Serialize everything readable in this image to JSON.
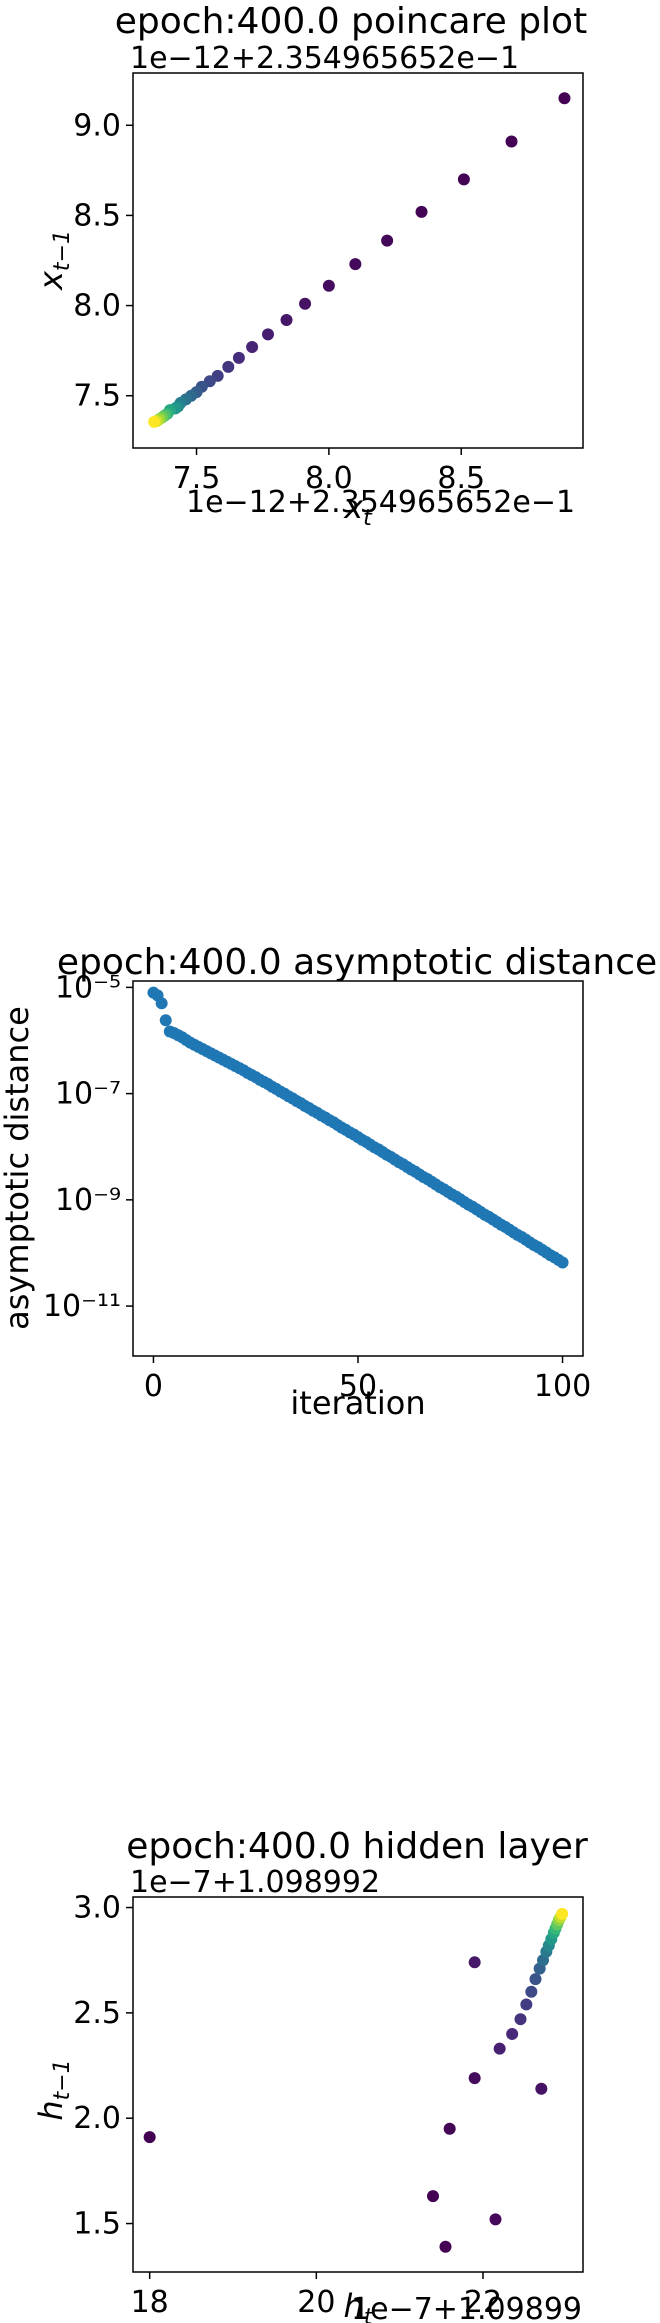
{
  "chart_data": [
    {
      "type": "scatter",
      "title": "epoch:400.0 poincare plot",
      "offset_x_label": "1e−12+2.354965652e−1",
      "offset_y_label": "1e−12+2.354965652e−1",
      "xlabel": "x_t",
      "ylabel": "x_{t−1}",
      "xlim": [
        7.26,
        8.96
      ],
      "ylim": [
        7.21,
        9.29
      ],
      "xticks": [
        7.5,
        8.0,
        8.5
      ],
      "xtick_labels": [
        "7.5",
        "8.0",
        "8.5"
      ],
      "yticks": [
        7.5,
        8.0,
        8.5,
        9.0
      ],
      "ytick_labels": [
        "7.5",
        "8.0",
        "8.5",
        "9.0"
      ],
      "colormap": "viridis",
      "color_by": "iteration order (dark = early, yellow = late)",
      "points": [
        {
          "x": 8.89,
          "y": 9.15
        },
        {
          "x": 8.69,
          "y": 8.91
        },
        {
          "x": 8.51,
          "y": 8.7
        },
        {
          "x": 8.35,
          "y": 8.52
        },
        {
          "x": 8.22,
          "y": 8.36
        },
        {
          "x": 8.1,
          "y": 8.23
        },
        {
          "x": 8.0,
          "y": 8.11
        },
        {
          "x": 7.91,
          "y": 8.01
        },
        {
          "x": 7.84,
          "y": 7.92
        },
        {
          "x": 7.77,
          "y": 7.84
        },
        {
          "x": 7.71,
          "y": 7.77
        },
        {
          "x": 7.66,
          "y": 7.71
        },
        {
          "x": 7.62,
          "y": 7.66
        },
        {
          "x": 7.58,
          "y": 7.61
        },
        {
          "x": 7.55,
          "y": 7.58
        },
        {
          "x": 7.52,
          "y": 7.55
        },
        {
          "x": 7.5,
          "y": 7.52
        },
        {
          "x": 7.48,
          "y": 7.5
        },
        {
          "x": 7.46,
          "y": 7.48
        },
        {
          "x": 7.44,
          "y": 7.46
        },
        {
          "x": 7.43,
          "y": 7.44
        },
        {
          "x": 7.42,
          "y": 7.43
        },
        {
          "x": 7.4,
          "y": 7.42
        },
        {
          "x": 7.39,
          "y": 7.4
        },
        {
          "x": 7.38,
          "y": 7.39
        },
        {
          "x": 7.37,
          "y": 7.38
        },
        {
          "x": 7.36,
          "y": 7.37
        },
        {
          "x": 7.35,
          "y": 7.36
        },
        {
          "x": 7.34,
          "y": 7.355
        }
      ]
    },
    {
      "type": "scatter",
      "title": "epoch:400.0 asymptotic distance",
      "xlabel": "iteration",
      "ylabel": "asymptotic distance",
      "yscale": "log",
      "xlim": [
        -5,
        105
      ],
      "ylim_log10": [
        -11.94,
        -4.88
      ],
      "xticks": [
        0,
        50,
        100
      ],
      "xtick_labels": [
        "0",
        "50",
        "100"
      ],
      "yticks_log10": [
        -5,
        -7,
        -9,
        -11
      ],
      "ytick_labels": [
        "10⁻⁵",
        "10⁻⁷",
        "10⁻⁹",
        "10⁻¹¹"
      ],
      "color": "#1f77b4",
      "x": [
        0,
        1,
        2,
        3,
        4,
        5,
        6,
        7,
        8,
        9,
        10,
        11,
        12,
        13,
        14,
        15,
        16,
        17,
        18,
        19,
        20,
        21,
        22,
        23,
        24,
        25,
        26,
        27,
        28,
        29,
        30,
        31,
        32,
        33,
        34,
        35,
        36,
        37,
        38,
        39,
        40,
        41,
        42,
        43,
        44,
        45,
        46,
        47,
        48,
        49,
        50,
        51,
        52,
        53,
        54,
        55,
        56,
        57,
        58,
        59,
        60,
        61,
        62,
        63,
        64,
        65,
        66,
        67,
        68,
        69,
        70,
        71,
        72,
        73,
        74,
        75,
        76,
        77,
        78,
        79,
        80,
        81,
        82,
        83,
        84,
        85,
        86,
        87,
        88,
        89,
        90,
        91,
        92,
        93,
        94,
        95,
        96,
        97,
        98,
        99,
        100
      ],
      "log10_y": [
        -5.1,
        -5.15,
        -5.3,
        -5.62,
        -5.83,
        -5.86,
        -5.9,
        -5.94,
        -5.99,
        -6.04,
        -6.08,
        -6.12,
        -6.16,
        -6.2,
        -6.24,
        -6.28,
        -6.32,
        -6.36,
        -6.4,
        -6.44,
        -6.48,
        -6.52,
        -6.56,
        -6.61,
        -6.65,
        -6.69,
        -6.74,
        -6.78,
        -6.82,
        -6.87,
        -6.91,
        -6.96,
        -7.0,
        -7.05,
        -7.09,
        -7.14,
        -7.18,
        -7.23,
        -7.27,
        -7.32,
        -7.36,
        -7.41,
        -7.45,
        -7.5,
        -7.54,
        -7.59,
        -7.64,
        -7.68,
        -7.73,
        -7.77,
        -7.82,
        -7.87,
        -7.91,
        -7.96,
        -8.01,
        -8.05,
        -8.1,
        -8.15,
        -8.19,
        -8.24,
        -8.29,
        -8.33,
        -8.38,
        -8.43,
        -8.47,
        -8.52,
        -8.57,
        -8.61,
        -8.66,
        -8.71,
        -8.76,
        -8.8,
        -8.85,
        -8.9,
        -8.94,
        -8.99,
        -9.04,
        -9.09,
        -9.13,
        -9.18,
        -9.23,
        -9.28,
        -9.32,
        -9.37,
        -9.42,
        -9.47,
        -9.51,
        -9.56,
        -9.61,
        -9.66,
        -9.7,
        -9.75,
        -9.8,
        -9.85,
        -9.89,
        -9.94,
        -9.99,
        -10.04,
        -10.08,
        -10.13,
        -10.18
      ]
    },
    {
      "type": "scatter",
      "title": "epoch:400.0 hidden layer",
      "offset_x_label": "1e−7+1.09899",
      "offset_y_label": "1e−7+1.098992",
      "xlabel": "h_t",
      "ylabel": "h_{t−1}",
      "xlim": [
        17.8,
        23.2
      ],
      "ylim": [
        1.27,
        3.05
      ],
      "xticks": [
        18,
        20,
        22
      ],
      "xtick_labels": [
        "18",
        "20",
        "22"
      ],
      "yticks": [
        1.5,
        2.0,
        2.5,
        3.0
      ],
      "ytick_labels": [
        "1.5",
        "2.0",
        "2.5",
        "3.0"
      ],
      "colormap": "viridis",
      "color_by": "iteration order (dark = early, yellow = late)",
      "points": [
        {
          "x": 18.0,
          "y": 1.91
        },
        {
          "x": 21.55,
          "y": 1.39
        },
        {
          "x": 21.4,
          "y": 1.63
        },
        {
          "x": 21.6,
          "y": 1.95
        },
        {
          "x": 22.15,
          "y": 1.52
        },
        {
          "x": 21.9,
          "y": 2.19
        },
        {
          "x": 22.7,
          "y": 2.14
        },
        {
          "x": 21.9,
          "y": 2.74
        },
        {
          "x": 22.2,
          "y": 2.33
        },
        {
          "x": 22.35,
          "y": 2.4
        },
        {
          "x": 22.45,
          "y": 2.47
        },
        {
          "x": 22.52,
          "y": 2.54
        },
        {
          "x": 22.58,
          "y": 2.6
        },
        {
          "x": 22.63,
          "y": 2.66
        },
        {
          "x": 22.68,
          "y": 2.71
        },
        {
          "x": 22.72,
          "y": 2.75
        },
        {
          "x": 22.76,
          "y": 2.79
        },
        {
          "x": 22.79,
          "y": 2.82
        },
        {
          "x": 22.82,
          "y": 2.85
        },
        {
          "x": 22.85,
          "y": 2.88
        },
        {
          "x": 22.87,
          "y": 2.9
        },
        {
          "x": 22.89,
          "y": 2.92
        },
        {
          "x": 22.91,
          "y": 2.94
        },
        {
          "x": 22.93,
          "y": 2.955
        },
        {
          "x": 22.95,
          "y": 2.97
        }
      ]
    }
  ]
}
